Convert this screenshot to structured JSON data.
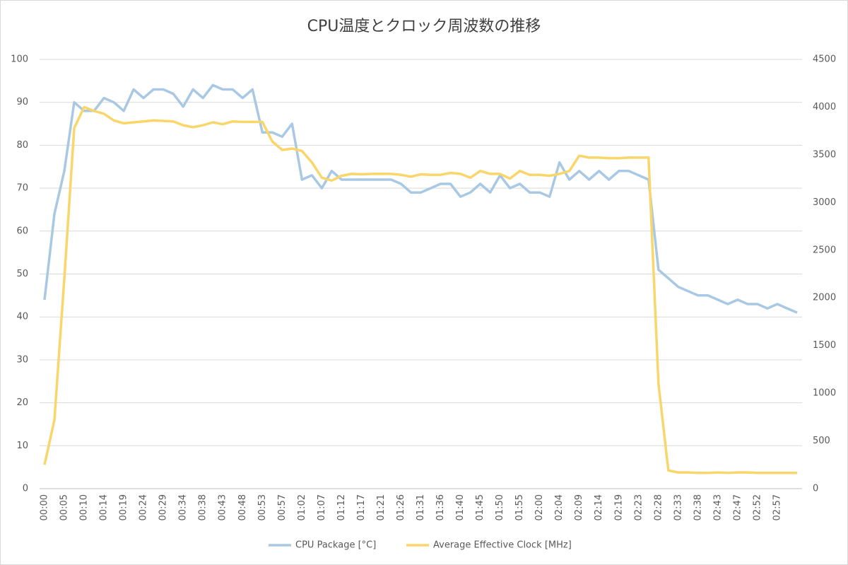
{
  "chart_data": {
    "type": "line",
    "title": "CPU温度とクロック周波数の推移",
    "categories": [
      "00:00",
      null,
      "00:05",
      null,
      "00:10",
      null,
      "00:14",
      null,
      "00:19",
      null,
      "00:24",
      null,
      "00:29",
      null,
      "00:34",
      null,
      "00:38",
      null,
      "00:43",
      null,
      "00:48",
      null,
      "00:53",
      null,
      "00:57",
      null,
      "01:02",
      null,
      "01:07",
      null,
      "01:12",
      null,
      "01:17",
      null,
      "01:21",
      null,
      "01:26",
      null,
      "01:31",
      null,
      "01:36",
      null,
      "01:40",
      null,
      "01:45",
      null,
      "01:50",
      null,
      "01:55",
      null,
      "02:00",
      null,
      "02:04",
      null,
      "02:09",
      null,
      "02:14",
      null,
      "02:19",
      null,
      "02:23",
      null,
      "02:28",
      null,
      "02:33",
      null,
      "02:38",
      null,
      "02:43",
      null,
      "02:47",
      null,
      "02:52",
      null,
      "02:57",
      null,
      null
    ],
    "series": [
      {
        "name": "CPU Package [°C]",
        "color": "#a9c8e4",
        "values": [
          44,
          64,
          74,
          90,
          88,
          88,
          91,
          90,
          88,
          93,
          91,
          93,
          93,
          92,
          89,
          93,
          91,
          94,
          93,
          93,
          91,
          93,
          83,
          83,
          82,
          85,
          72,
          73,
          70,
          74,
          72,
          72,
          72,
          72,
          72,
          72,
          71,
          69,
          69,
          70,
          71,
          71,
          68,
          69,
          71,
          69,
          73,
          70,
          71,
          69,
          69,
          68,
          76,
          72,
          74,
          72,
          74,
          72,
          74,
          74,
          73,
          72,
          51,
          49,
          47,
          46,
          45,
          45,
          44,
          43,
          44,
          43,
          43,
          42,
          43,
          42,
          41
        ]
      },
      {
        "name": "Average Effective Clock [MHz]",
        "color": "#f9d66a",
        "axis": "y2",
        "values": [
          250,
          720,
          2200,
          3780,
          4000,
          3960,
          3930,
          3860,
          3830,
          3840,
          3850,
          3860,
          3855,
          3850,
          3810,
          3790,
          3810,
          3840,
          3820,
          3850,
          3845,
          3845,
          3845,
          3640,
          3550,
          3565,
          3540,
          3420,
          3260,
          3230,
          3280,
          3300,
          3295,
          3300,
          3300,
          3300,
          3290,
          3270,
          3295,
          3290,
          3290,
          3310,
          3300,
          3260,
          3330,
          3300,
          3300,
          3250,
          3330,
          3290,
          3290,
          3280,
          3300,
          3330,
          3490,
          3470,
          3470,
          3465,
          3465,
          3470,
          3470,
          3470,
          1100,
          190,
          170,
          170,
          165,
          165,
          170,
          165,
          170,
          170,
          165,
          165,
          165,
          165,
          165
        ]
      }
    ],
    "ylim": [
      0,
      100
    ],
    "yticks": [
      0,
      10,
      20,
      30,
      40,
      50,
      60,
      70,
      80,
      90,
      100
    ],
    "y2lim": [
      0,
      4500
    ],
    "y2ticks": [
      0,
      500,
      1000,
      1500,
      2000,
      2500,
      3000,
      3500,
      4000,
      4500
    ],
    "grid": true,
    "legend": "bottom"
  }
}
